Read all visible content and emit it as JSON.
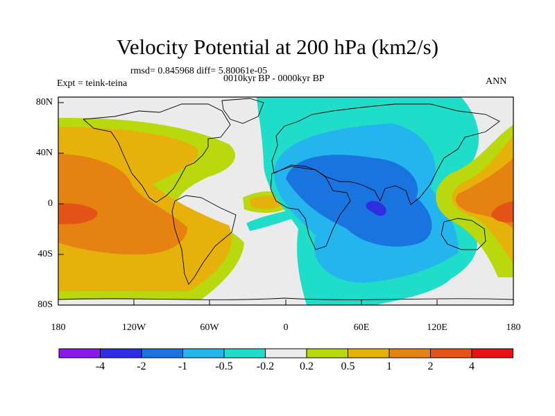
{
  "title": "Velocity Potential at 200 hPa (km2/s)",
  "subtitle_rmsd": "rmsd= 0.845968 diff= 5.80061e-05",
  "subtitle_period": "0010kyr BP - 0000kyr BP",
  "left_label": "Expt = teink-teina",
  "right_label": "ANN",
  "lat_ticks": [
    "80N",
    "40N",
    "0",
    "40S",
    "80S"
  ],
  "lon_ticks": [
    "180",
    "120W",
    "60W",
    "0",
    "60E",
    "120E",
    "180"
  ],
  "colorbar_labels": [
    "-4",
    "-2",
    "-1",
    "-0.5",
    "-0.2",
    "0.2",
    "0.5",
    "1",
    "2",
    "4"
  ],
  "colors": {
    "bins": [
      "#8a19ea",
      "#2f2de0",
      "#1a74e0",
      "#24b4ee",
      "#1fddc8",
      "#ebebeb",
      "#b9d80d",
      "#e5b10a",
      "#e58212",
      "#e45416",
      "#e41416"
    ],
    "land_outline": "#000000"
  }
}
